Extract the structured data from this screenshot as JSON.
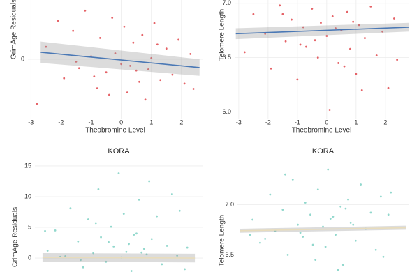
{
  "chart_data": [
    {
      "type": "scatter",
      "y_label": "GrimAge Residuals",
      "x_label": "Theobromine Level",
      "color": "#e0474c",
      "x": [
        -2.8,
        -2.5,
        -2.1,
        -1.9,
        -1.6,
        -1.4,
        -1.2,
        -1.0,
        -0.8,
        -0.7,
        -0.5,
        -0.3,
        -0.2,
        0.0,
        0.1,
        0.2,
        0.4,
        0.5,
        0.7,
        0.8,
        1.0,
        1.1,
        1.3,
        1.5,
        1.7,
        1.9,
        2.1,
        2.3,
        -0.9,
        0.3,
        0.6,
        -1.5,
        1.2,
        -0.4,
        0.9,
        2.4
      ],
      "values": [
        -7.5,
        2.1,
        6.5,
        -3.2,
        4.8,
        -1.5,
        8.2,
        0.5,
        -4.9,
        3.6,
        -2.2,
        7.0,
        1.0,
        -0.8,
        5.5,
        -5.6,
        2.8,
        -1.9,
        4.1,
        -6.8,
        0.2,
        6.1,
        -3.5,
        1.8,
        -2.6,
        3.3,
        -4.1,
        0.9,
        -2.9,
        -1.1,
        -3.8,
        -0.4,
        2.5,
        -6.0,
        -1.7,
        -5.0
      ],
      "fit": {
        "color": "#4a78b5",
        "x": [
          -2.7,
          2.6
        ],
        "values": [
          1.2,
          -1.4
        ],
        "lower": [
          -0.6,
          -2.8
        ],
        "upper": [
          3.0,
          0.0
        ]
      },
      "xlim": [
        -3.1,
        2.7
      ],
      "ylim": [
        -10,
        10
      ],
      "xticks": [
        -3,
        -2,
        -1,
        0,
        1,
        2
      ],
      "yticks": [
        0
      ],
      "grid": true
    },
    {
      "type": "scatter",
      "y_label": "Telomere Length",
      "x_label": "Theobromine Level",
      "color": "#e0474c",
      "x": [
        -2.8,
        -2.5,
        -2.1,
        -1.9,
        -1.6,
        -1.4,
        -1.2,
        -1.0,
        -0.8,
        -0.7,
        -0.5,
        -0.3,
        -0.2,
        0.0,
        0.1,
        0.2,
        0.4,
        0.5,
        0.7,
        0.8,
        1.0,
        1.1,
        1.3,
        1.5,
        1.7,
        1.9,
        2.1,
        2.3,
        -0.9,
        0.3,
        0.6,
        -1.5,
        1.2,
        -0.4,
        0.9,
        2.4
      ],
      "values": [
        6.55,
        6.9,
        6.72,
        6.4,
        6.98,
        6.65,
        6.85,
        6.3,
        6.78,
        6.6,
        6.95,
        6.5,
        6.82,
        6.7,
        6.02,
        6.88,
        6.45,
        6.75,
        6.92,
        6.58,
        6.35,
        6.8,
        6.68,
        6.97,
        6.52,
        6.74,
        6.22,
        6.86,
        6.62,
        6.77,
        6.42,
        6.9,
        6.2,
        6.66,
        6.83,
        6.48
      ],
      "fit": {
        "color": "#4a78b5",
        "x": [
          -3.1,
          2.8
        ],
        "values": [
          6.72,
          6.78
        ],
        "lower": [
          6.67,
          6.74
        ],
        "upper": [
          6.77,
          6.82
        ]
      },
      "xlim": [
        -3.14,
        2.79
      ],
      "ylim": [
        5.94,
        7.03
      ],
      "xticks": [
        -3,
        -2,
        -1,
        0,
        1,
        2
      ],
      "yticks": [
        {
          "value": 6,
          "label": "6.0"
        },
        6.5,
        {
          "value": 7,
          "label": "7.0"
        }
      ],
      "grid": true
    },
    {
      "type": "scatter",
      "title": "KORA",
      "y_label": "GrimAge Residuals",
      "color": "#7fd1c4",
      "x": [
        -2.8,
        -2.5,
        -2.1,
        -1.9,
        -1.6,
        -1.4,
        -1.2,
        -1.0,
        -0.8,
        -0.7,
        -0.5,
        -0.3,
        -0.2,
        0.0,
        0.1,
        0.2,
        0.4,
        0.5,
        0.7,
        0.8,
        1.0,
        1.1,
        1.3,
        1.5,
        1.7,
        1.9,
        2.1,
        2.3,
        -0.9,
        0.3,
        0.6,
        -1.5,
        1.2,
        -0.4,
        0.9,
        2.4,
        2.7,
        -2.9,
        2.6,
        -2.3
      ],
      "values": [
        1.2,
        4.5,
        0.3,
        8.1,
        2.7,
        -1.5,
        6.3,
        0.8,
        11.2,
        3.4,
        -0.6,
        5.1,
        1.9,
        13.8,
        0.1,
        7.2,
        2.3,
        -2.1,
        4.0,
        9.5,
        1.5,
        0.6,
        3.1,
        6.8,
        -1.0,
        2.0,
        10.4,
        0.4,
        5.7,
        1.0,
        3.8,
        -0.3,
        12.5,
        2.6,
        0.9,
        7.7,
        1.7,
        4.4,
        -1.8,
        0.2
      ],
      "fit": {
        "color": "#e8dcbc",
        "x": [
          -3.0,
          3.0
        ],
        "values": [
          0.1,
          0.0
        ],
        "lower": [
          -0.6,
          -0.7
        ],
        "upper": [
          0.8,
          0.7
        ]
      },
      "xlim": [
        -3.3,
        3.3
      ],
      "ylim": [
        -3.4,
        15.9
      ],
      "yticks": [
        0,
        5,
        10,
        15
      ],
      "grid": true
    },
    {
      "type": "scatter",
      "title": "KORA",
      "y_label": "Telomere Length",
      "color": "#7fd1c4",
      "x": [
        -2.8,
        -2.5,
        -2.1,
        -1.9,
        -1.6,
        -1.4,
        -1.2,
        -1.0,
        -0.8,
        -0.7,
        -0.5,
        -0.3,
        -0.2,
        0.0,
        0.1,
        0.2,
        0.4,
        0.5,
        0.7,
        0.8,
        1.0,
        1.1,
        1.3,
        1.5,
        1.7,
        1.9,
        2.1,
        2.3,
        -0.9,
        0.3,
        0.6,
        -1.5,
        1.2,
        -0.4,
        0.9,
        2.4,
        2.7,
        -2.9,
        2.6,
        -2.3
      ],
      "values": [
        6.85,
        6.62,
        7.1,
        6.74,
        6.95,
        6.5,
        7.25,
        6.8,
        6.68,
        7.02,
        6.9,
        6.45,
        7.15,
        6.78,
        6.58,
        7.35,
        6.88,
        6.7,
        6.98,
        6.4,
        7.05,
        6.82,
        6.64,
        7.2,
        6.76,
        6.92,
        6.55,
        7.08,
        6.72,
        6.86,
        6.35,
        7.3,
        6.8,
        6.6,
        6.96,
        6.48,
        7.12,
        6.7,
        6.9,
        6.66
      ],
      "fit": {
        "color": "#e8dcbc",
        "x": [
          -3.3,
          3.3
        ],
        "values": [
          6.74,
          6.77
        ],
        "lower": [
          6.72,
          6.75
        ],
        "upper": [
          6.76,
          6.79
        ]
      },
      "xlim": [
        -3.4,
        3.4
      ],
      "ylim": [
        6.26,
        7.44
      ],
      "yticks": [
        6.5,
        {
          "value": 7,
          "label": "7.0"
        }
      ],
      "grid": true
    }
  ]
}
